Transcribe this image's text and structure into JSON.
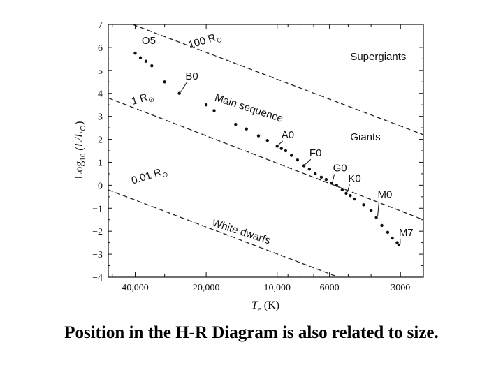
{
  "caption": "Position in the H-R Diagram is also related to size.",
  "chart_data": {
    "type": "scatter",
    "title": "",
    "xlabel_main": "T",
    "xlabel_sub": "e",
    "xlabel_unit": " (K)",
    "ylabel_main": "Log",
    "ylabel_sub": "10",
    "ylabel_rest": " (L/L",
    "ylabel_sun": "⊙",
    "ylabel_close": ")",
    "x_axis": "log temperature, decreasing to the right",
    "xlim": [
      52000,
      2400
    ],
    "ylim": [
      -4,
      7
    ],
    "grid": false,
    "legend": "none",
    "x_ticks": [
      {
        "value": 40000,
        "label": "40,000"
      },
      {
        "value": 20000,
        "label": "20,000"
      },
      {
        "value": 10000,
        "label": "10,000"
      },
      {
        "value": 6000,
        "label": "6000"
      },
      {
        "value": 3000,
        "label": "3000"
      }
    ],
    "x_minor_ticks": [
      50000,
      30000,
      9000,
      8000,
      7000,
      5000,
      4000
    ],
    "y_ticks": [
      {
        "value": 7,
        "label": "7"
      },
      {
        "value": 6,
        "label": "6"
      },
      {
        "value": 5,
        "label": "5"
      },
      {
        "value": 4,
        "label": "4"
      },
      {
        "value": 3,
        "label": "3"
      },
      {
        "value": 2,
        "label": "2"
      },
      {
        "value": 1,
        "label": "1"
      },
      {
        "value": 0,
        "label": "0"
      },
      {
        "value": -1,
        "label": "−1"
      },
      {
        "value": -2,
        "label": "−2"
      },
      {
        "value": -3,
        "label": "−3"
      },
      {
        "value": -4,
        "label": "−4"
      }
    ],
    "radius_lines": [
      {
        "name": "100 R",
        "sun": "⊙",
        "points": [
          [
            41000,
            7.0
          ],
          [
            2400,
            2.2
          ]
        ],
        "label_at": [
          23500,
          5.95
        ],
        "label_rot": -17
      },
      {
        "name": "1 R",
        "sun": "⊙",
        "points": [
          [
            52000,
            3.8
          ],
          [
            2400,
            -1.5
          ]
        ],
        "label_at": [
          41000,
          3.5
        ],
        "label_rot": -17
      },
      {
        "name": "0.01 R",
        "sun": "⊙",
        "points": [
          [
            52000,
            -0.2
          ],
          [
            5500,
            -4.0
          ]
        ],
        "label_at": [
          41000,
          0.05
        ],
        "label_rot": -17
      }
    ],
    "main_sequence": {
      "name": "Main sequence",
      "points": [
        [
          40000,
          5.75
        ],
        [
          38000,
          5.55
        ],
        [
          36000,
          5.4
        ],
        [
          34000,
          5.2
        ],
        [
          30000,
          4.5
        ],
        [
          26000,
          4.0
        ],
        [
          20000,
          3.5
        ],
        [
          18500,
          3.25
        ],
        [
          15000,
          2.65
        ],
        [
          13500,
          2.45
        ],
        [
          12000,
          2.15
        ],
        [
          11000,
          1.95
        ],
        [
          10000,
          1.7
        ],
        [
          9600,
          1.6
        ],
        [
          9200,
          1.5
        ],
        [
          8700,
          1.3
        ],
        [
          8200,
          1.1
        ],
        [
          7700,
          0.85
        ],
        [
          7300,
          0.7
        ],
        [
          6900,
          0.5
        ],
        [
          6500,
          0.35
        ],
        [
          6200,
          0.25
        ],
        [
          5900,
          0.1
        ],
        [
          5600,
          0.0
        ],
        [
          5300,
          -0.2
        ],
        [
          5100,
          -0.35
        ],
        [
          4900,
          -0.45
        ],
        [
          4700,
          -0.6
        ],
        [
          4300,
          -0.85
        ],
        [
          4000,
          -1.1
        ],
        [
          3800,
          -1.4
        ],
        [
          3600,
          -1.75
        ],
        [
          3400,
          -2.05
        ],
        [
          3250,
          -2.3
        ],
        [
          3100,
          -2.5
        ],
        [
          3050,
          -2.6
        ]
      ]
    },
    "spectral_labels": [
      {
        "text": "O5",
        "at": [
          37500,
          6.15
        ],
        "point": [
          40000,
          5.75
        ],
        "arrow": false
      },
      {
        "text": "B0",
        "at": [
          24500,
          4.6
        ],
        "point": [
          26000,
          4.0
        ],
        "arrow": true
      },
      {
        "text": "A0",
        "at": [
          9600,
          2.05
        ],
        "point": [
          10000,
          1.7
        ],
        "arrow": true
      },
      {
        "text": "F0",
        "at": [
          7300,
          1.25
        ],
        "point": [
          7700,
          0.85
        ],
        "arrow": true
      },
      {
        "text": "G0",
        "at": [
          5800,
          0.6
        ],
        "point": [
          5900,
          0.1
        ],
        "arrow": true
      },
      {
        "text": "K0",
        "at": [
          5000,
          0.15
        ],
        "point": [
          5100,
          -0.35
        ],
        "arrow": true
      },
      {
        "text": "M0",
        "at": [
          3750,
          -0.55
        ],
        "point": [
          3800,
          -1.4
        ],
        "arrow": true
      },
      {
        "text": "M7",
        "at": [
          3050,
          -2.2
        ],
        "point": [
          3050,
          -2.6
        ],
        "arrow": true
      }
    ],
    "region_labels": [
      {
        "text": "Supergiants",
        "at": [
          4900,
          5.45
        ],
        "rot": 0
      },
      {
        "text": "Giants",
        "at": [
          4900,
          1.95
        ],
        "rot": 0
      },
      {
        "text": "Main sequence",
        "at": [
          18500,
          3.7
        ],
        "rot": 18
      },
      {
        "text": "White dwarfs",
        "at": [
          19000,
          -1.75
        ],
        "rot": 18
      }
    ]
  }
}
